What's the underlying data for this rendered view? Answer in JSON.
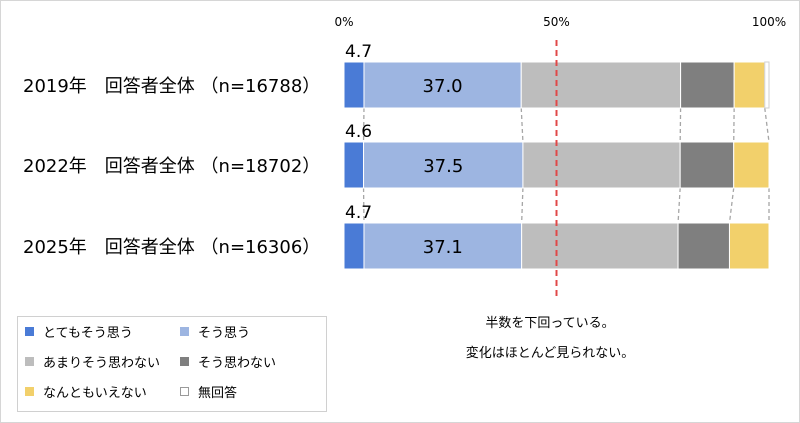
{
  "chart_data": {
    "type": "bar",
    "orientation": "horizontal",
    "stacked": true,
    "percent_stacked": true,
    "categories": [
      "2019年　回答者全体 （n=16788）",
      "2022年　回答者全体 （n=18702）",
      "2025年　回答者全体 （n=16306）"
    ],
    "series": [
      {
        "name": "とてもそう思う",
        "color": "#4a7bd6",
        "values": [
          4.7,
          4.6,
          4.7
        ]
      },
      {
        "name": "そう思う",
        "color": "#9db5e1",
        "values": [
          37.0,
          37.5,
          37.1
        ]
      },
      {
        "name": "あまりそう思わない",
        "color": "#bdbdbd",
        "values": [
          37.5,
          37.0,
          36.8
        ]
      },
      {
        "name": "そう思わない",
        "color": "#7f7f7f",
        "values": [
          12.6,
          12.6,
          12.1
        ]
      },
      {
        "name": "なんともいえない",
        "color": "#f2d06b",
        "values": [
          7.2,
          8.3,
          9.3
        ]
      },
      {
        "name": "無回答",
        "color": "#ffffff",
        "values": [
          1.0,
          0.0,
          0.0
        ]
      }
    ],
    "data_labels": [
      {
        "series": 0,
        "values": [
          "4.7",
          "4.6",
          "4.7"
        ]
      },
      {
        "series": 1,
        "values": [
          "37.0",
          "37.5",
          "37.1"
        ]
      }
    ],
    "x_ticks": [
      "0%",
      "50%",
      "100%"
    ],
    "xlim": [
      0,
      100
    ],
    "reference_line": {
      "value": 50,
      "color": "#e04848",
      "style": "dashed"
    },
    "series_connectors": true,
    "grid": false,
    "legend": {
      "position": "bottom-left"
    }
  },
  "notes": [
    "半数を下回っている。",
    "変化はほとんど見られない。"
  ]
}
